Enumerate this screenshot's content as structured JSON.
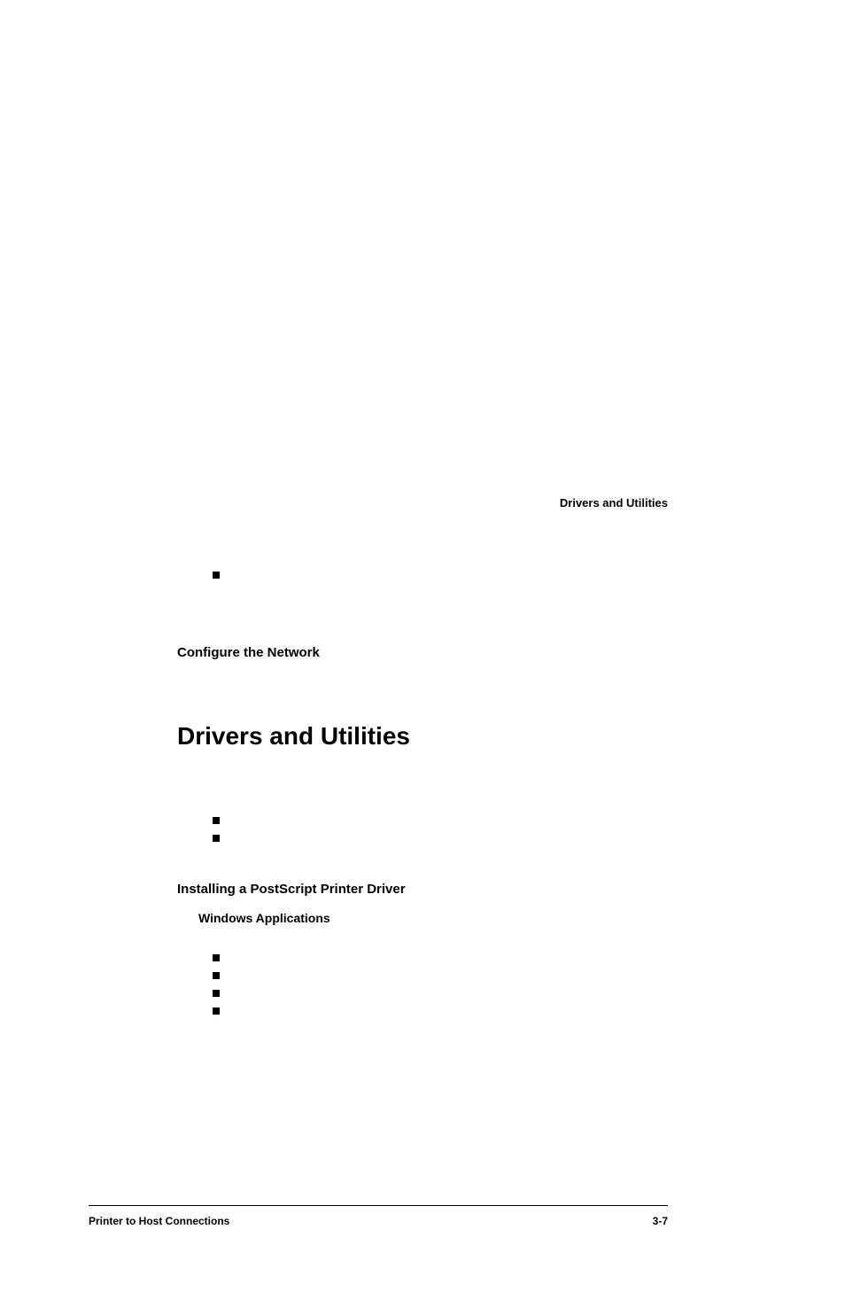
{
  "header": {
    "right_title": "Drivers and Utilities"
  },
  "section1": {
    "subhead": "Configure the Network"
  },
  "main_heading": "Drivers and Utilities",
  "section2": {
    "subhead": "Installing a PostScript Printer Driver",
    "subsubhead": "Windows Applications"
  },
  "footer": {
    "left": "Printer to Host Connections",
    "right": "3-7"
  },
  "style": {
    "font_body": "Georgia, 'Times New Roman', serif",
    "font_heading": "Verdana, Arial, sans-serif",
    "bg_color": "#ffffff",
    "text_color": "#000000",
    "bullet_color": "#000000",
    "main_heading_fontsize": 28,
    "subhead_fontsize": 15,
    "header_fontsize": 13,
    "footer_fontsize": 12,
    "bullet_size": 8
  }
}
